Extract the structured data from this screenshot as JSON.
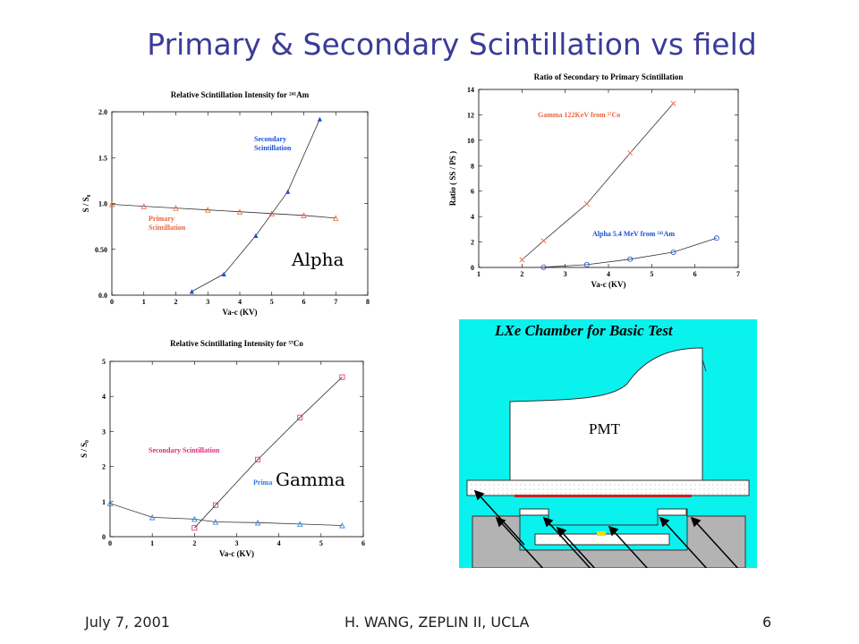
{
  "slide": {
    "title": "Primary & Secondary Scintillation vs field",
    "footer_left": "July 7, 2001",
    "footer_center": "H. WANG, ZEPLIN II, UCLA",
    "footer_right": "6"
  },
  "overlays": {
    "alpha": "Alpha",
    "gamma": "Gamma"
  },
  "chamber": {
    "title": "LXe Chamber for Basic Test",
    "pmt_label": "PMT",
    "bg_color": "#0af2ee"
  },
  "chart_data": [
    {
      "id": "alpha",
      "type": "scatter",
      "title": "Relative Scintillation Intensity for ²⁴¹Am",
      "xlabel": "Va-c (KV)",
      "ylabel": "S / S₀",
      "xlim": [
        0,
        8
      ],
      "ylim": [
        0,
        2
      ],
      "xticks": [
        "0",
        "1",
        "2",
        "3",
        "4",
        "5",
        "6",
        "7",
        "8"
      ],
      "yticks": [
        {
          "v": 0,
          "label": "0.0"
        },
        {
          "v": 0.5,
          "label": "0.50"
        },
        {
          "v": 1,
          "label": "1.0"
        },
        {
          "v": 1.5,
          "label": "1.5"
        },
        {
          "v": 2,
          "label": "2.0"
        }
      ],
      "series": [
        {
          "name": "Secondary Scintillation",
          "label_lines": [
            "Secondary",
            "Scintillation"
          ],
          "color": "#1a4fd6",
          "marker": "filled-triangle",
          "x": [
            2.5,
            3.5,
            4.5,
            5.5,
            6.5
          ],
          "y": [
            0.04,
            0.23,
            0.65,
            1.13,
            1.92
          ]
        },
        {
          "name": "Primary Scintillation",
          "label_lines": [
            "Primary",
            "Scintillation"
          ],
          "color": "#e8663c",
          "marker": "triangle",
          "x": [
            0,
            1,
            2,
            3,
            4,
            5,
            6,
            7
          ],
          "y": [
            0.99,
            0.97,
            0.95,
            0.93,
            0.91,
            0.89,
            0.87,
            0.84
          ]
        }
      ]
    },
    {
      "id": "ratio",
      "type": "scatter",
      "title": "Ratio of Secondary to Primary Scintillation",
      "xlabel": "Va-c (KV)",
      "ylabel": "Ratio ( SS / PS )",
      "xlim": [
        1,
        7
      ],
      "ylim": [
        0,
        14
      ],
      "xticks": [
        "1",
        "2",
        "3",
        "4",
        "5",
        "6",
        "7"
      ],
      "yticks": [
        {
          "v": 0,
          "label": "0"
        },
        {
          "v": 2,
          "label": "2"
        },
        {
          "v": 4,
          "label": "4"
        },
        {
          "v": 6,
          "label": "6"
        },
        {
          "v": 8,
          "label": "8"
        },
        {
          "v": 10,
          "label": "10"
        },
        {
          "v": 12,
          "label": "12"
        },
        {
          "v": 14,
          "label": "14"
        }
      ],
      "series": [
        {
          "name": "Gamma 122KeV from ⁵⁷Co",
          "label_lines": [
            "Gamma 122KeV from ⁵⁷Co"
          ],
          "color": "#e8663c",
          "marker": "x",
          "x": [
            2,
            2.5,
            3.5,
            4.5,
            5.5
          ],
          "y": [
            0.6,
            2.1,
            5.0,
            9.0,
            12.9
          ]
        },
        {
          "name": "Alpha 5.4 MeV from ²⁴¹Am",
          "label_lines": [
            "Alpha 5.4 MeV from ²⁴¹Am"
          ],
          "color": "#1a4fd6",
          "marker": "circle",
          "x": [
            2.5,
            3.5,
            4.5,
            5.5,
            6.5
          ],
          "y": [
            0.02,
            0.22,
            0.65,
            1.2,
            2.3
          ]
        }
      ]
    },
    {
      "id": "gamma",
      "type": "scatter",
      "title": "Relative Scintillating Intensity for ⁵⁷Co",
      "xlabel": "Va-c (KV)",
      "ylabel": "S / S₀",
      "xlim": [
        0,
        6
      ],
      "ylim": [
        0,
        5
      ],
      "xticks": [
        "0",
        "1",
        "2",
        "3",
        "4",
        "5",
        "6"
      ],
      "yticks": [
        {
          "v": 0,
          "label": "0"
        },
        {
          "v": 1,
          "label": "1"
        },
        {
          "v": 2,
          "label": "2"
        },
        {
          "v": 3,
          "label": "3"
        },
        {
          "v": 4,
          "label": "4"
        },
        {
          "v": 5,
          "label": "5"
        }
      ],
      "series": [
        {
          "name": "Secondary Scintillation",
          "label_lines": [
            "Secondary Scintillation"
          ],
          "color": "#e0287a",
          "marker": "square",
          "x": [
            2,
            2.5,
            3.5,
            4.5,
            5.5
          ],
          "y": [
            0.25,
            0.9,
            2.2,
            3.4,
            4.55
          ]
        },
        {
          "name": "Primary Scintillation",
          "label_lines": [
            "Primary Scintillation"
          ],
          "color": "#2b7be0",
          "marker": "triangle",
          "x": [
            0,
            1,
            2,
            2.5,
            3.5,
            4.5,
            5.5
          ],
          "y": [
            0.95,
            0.55,
            0.5,
            0.42,
            0.4,
            0.36,
            0.32
          ]
        }
      ]
    }
  ]
}
